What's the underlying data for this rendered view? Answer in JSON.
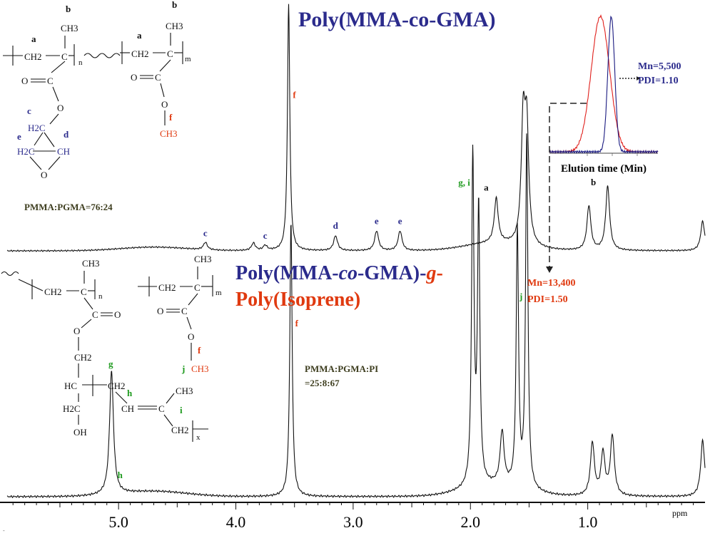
{
  "chart_data": [
    {
      "type": "line",
      "title": "Poly(MMA-co-GMA)",
      "xlabel": "ppm",
      "xlim": [
        5.95,
        0.0
      ],
      "x_reversed": true,
      "xticks": [
        5.0,
        4.0,
        3.0,
        2.0,
        1.0
      ],
      "xtick_labels": [
        "5.0",
        "4.0",
        "3.0",
        "2.0",
        "1.0"
      ],
      "peaks": [
        {
          "ppm": 4.26,
          "height": 0.03,
          "label": "c"
        },
        {
          "ppm": 3.85,
          "height": 0.03,
          "label": ""
        },
        {
          "ppm": 3.75,
          "height": 0.02,
          "label": "c"
        },
        {
          "ppm": 3.55,
          "height": 1.0,
          "label": "f"
        },
        {
          "ppm": 3.15,
          "height": 0.06,
          "label": "d"
        },
        {
          "ppm": 2.8,
          "height": 0.08,
          "label": "e"
        },
        {
          "ppm": 2.6,
          "height": 0.08,
          "label": "e"
        },
        {
          "ppm": 1.78,
          "height": 0.18,
          "label": "a"
        },
        {
          "ppm": 1.55,
          "height": 0.48,
          "label": ""
        },
        {
          "ppm": 1.52,
          "height": 0.45,
          "label": ""
        },
        {
          "ppm": 0.99,
          "height": 0.18,
          "label": ""
        },
        {
          "ppm": 0.83,
          "height": 0.26,
          "label": "b"
        },
        {
          "ppm": 0.02,
          "height": 0.12,
          "label": ""
        }
      ],
      "composition": "PMMA:PGMA=76:24"
    },
    {
      "type": "line",
      "title_parts": [
        "Poly(MMA-",
        "co",
        "-GMA)-",
        "g",
        "-",
        "Poly(Isoprene)"
      ],
      "xlabel": "ppm",
      "xlim": [
        5.95,
        0.0
      ],
      "peaks": [
        {
          "ppm": 5.06,
          "height": 0.35,
          "label": "h"
        },
        {
          "ppm": 3.53,
          "height": 0.78,
          "label": "f"
        },
        {
          "ppm": 1.98,
          "height": 0.93,
          "label": "g, i"
        },
        {
          "ppm": 1.93,
          "height": 0.78,
          "label": ""
        },
        {
          "ppm": 1.6,
          "height": 0.73,
          "label": ""
        },
        {
          "ppm": 1.52,
          "height": 1.0,
          "label": "j"
        },
        {
          "ppm": 1.73,
          "height": 0.15,
          "label": ""
        },
        {
          "ppm": 0.96,
          "height": 0.15,
          "label": ""
        },
        {
          "ppm": 0.87,
          "height": 0.12,
          "label": ""
        },
        {
          "ppm": 0.79,
          "height": 0.17,
          "label": ""
        },
        {
          "ppm": 0.02,
          "height": 0.16,
          "label": ""
        }
      ],
      "composition": [
        "PMMA:PGMA:PI",
        "=25:8:67"
      ]
    },
    {
      "type": "line",
      "role": "inset GPC traces",
      "xlabel": "Elution time (Min)",
      "series": [
        {
          "color": "#e0201c",
          "peak_x": 0.47,
          "width": 0.12
        },
        {
          "color": "#1a1a80",
          "peak_x": 0.57,
          "width": 0.045
        }
      ],
      "annotations": [
        {
          "text": [
            "Mn=5,500",
            "PDI=1.10"
          ],
          "color": "#2b2b8c"
        },
        {
          "text": [
            "Mn=13,400",
            "PDI=1.50"
          ],
          "color": "#e03a10"
        }
      ]
    }
  ],
  "colors": {
    "blue": "#2b2b8c",
    "red": "#e03a10",
    "green": "#1e9a1e",
    "olive": "#3d3d1e",
    "black": "#111111"
  },
  "structures": {
    "top": {
      "atoms": [
        "b",
        "CH3",
        "a",
        "CH2",
        "C",
        "n",
        "O",
        "C",
        "O",
        "c",
        "H2C",
        "e",
        "d",
        "H2C",
        "CH",
        "O",
        "b",
        "CH3",
        "a",
        "CH2",
        "C",
        "m",
        "O",
        "C",
        "O",
        "f",
        "CH3"
      ]
    },
    "bottom": {
      "atoms": [
        "CH3",
        "CH2",
        "C",
        "n",
        "C",
        "O",
        "O",
        "CH2",
        "HC",
        "H2C",
        "OH",
        "g",
        "CH2",
        "h",
        "CH",
        "C",
        "CH3",
        "i",
        "CH2",
        "x",
        "CH3",
        "CH2",
        "C",
        "m",
        "O",
        "C",
        "O",
        "f",
        "j",
        "CH3"
      ]
    }
  }
}
